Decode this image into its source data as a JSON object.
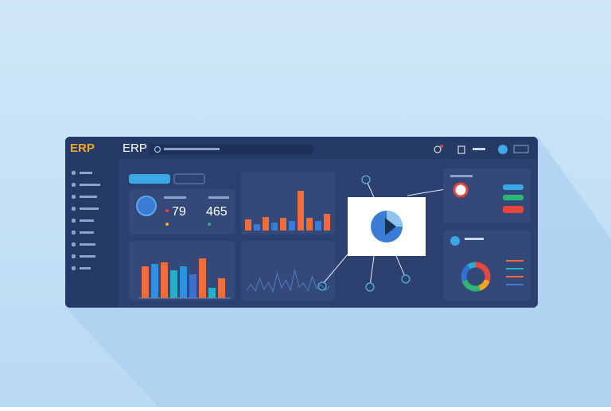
{
  "header": {
    "logo": "ERP",
    "title": "ERP"
  },
  "stats": {
    "left": "79",
    "right": "465"
  },
  "bar_chart": {
    "values": [
      40,
      43,
      45,
      35,
      40,
      30,
      50,
      13,
      25
    ],
    "colors": [
      "#f26b3a",
      "#2f8fe0",
      "#f26b3a",
      "#25b0c9",
      "#2f8fe0",
      "#3b6fd1",
      "#f26b3a",
      "#25b0c9",
      "#f26b3a"
    ]
  },
  "orange_chart": {
    "values": [
      14,
      8,
      17,
      10,
      16,
      12,
      50,
      16,
      12,
      21
    ],
    "colors": [
      "#f26b3a",
      "#3a7bd5",
      "#f26b3a",
      "#3a7bd5",
      "#f26b3a",
      "#3a7bd5",
      "#f26b3a",
      "#f26b3a",
      "#3a7bd5",
      "#f26b3a"
    ]
  },
  "line_chart": {
    "values": [
      5,
      12,
      4,
      20,
      6,
      15,
      3,
      26,
      8,
      18,
      5,
      30,
      9,
      14,
      4,
      22,
      7,
      12,
      5,
      10
    ]
  },
  "donut": {
    "values": [
      30,
      15,
      25,
      20,
      10
    ],
    "colors": [
      "#e8453c",
      "#f5a623",
      "#2bb673",
      "#2f6fd6",
      "#25b0c9"
    ]
  }
}
